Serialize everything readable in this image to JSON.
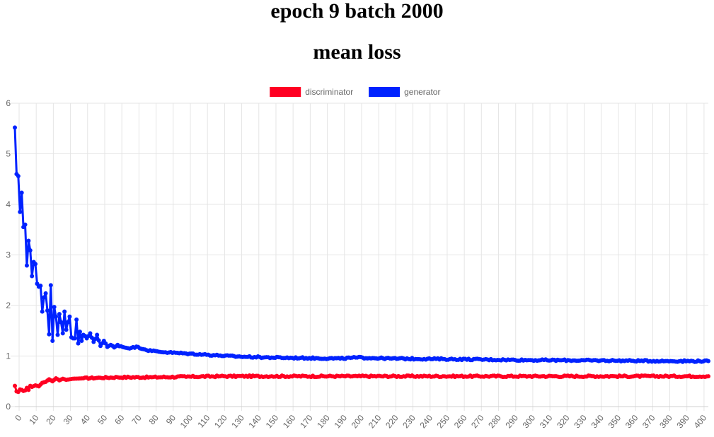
{
  "page": {
    "title_line1": "epoch 9 batch 2000",
    "title_line2": "mean loss"
  },
  "chart_data": {
    "type": "line",
    "title": [
      "epoch 9 batch 2000",
      "mean loss"
    ],
    "xlabel": "",
    "ylabel": "",
    "xlim": [
      0,
      405
    ],
    "ylim": [
      0,
      6
    ],
    "y_ticks": [
      0,
      1,
      2,
      3,
      4,
      5,
      6
    ],
    "x_tick_step": 10,
    "grid": true,
    "legend_position": "top",
    "series": [
      {
        "name": "discriminator",
        "color": "#ff0022",
        "points": [
          [
            0,
            0.41
          ],
          [
            1,
            0.3
          ],
          [
            2,
            0.29
          ],
          [
            3,
            0.34
          ],
          [
            4,
            0.33
          ],
          [
            5,
            0.31
          ],
          [
            6,
            0.32
          ],
          [
            7,
            0.37
          ],
          [
            8,
            0.33
          ],
          [
            9,
            0.41
          ],
          [
            10,
            0.39
          ],
          [
            12,
            0.42
          ],
          [
            14,
            0.4
          ],
          [
            16,
            0.47
          ],
          [
            18,
            0.49
          ],
          [
            20,
            0.54
          ],
          [
            22,
            0.5
          ],
          [
            24,
            0.56
          ],
          [
            26,
            0.52
          ],
          [
            28,
            0.55
          ],
          [
            30,
            0.53
          ],
          [
            34,
            0.55
          ],
          [
            40,
            0.56
          ],
          [
            50,
            0.57
          ],
          [
            60,
            0.58
          ],
          [
            80,
            0.58
          ],
          [
            100,
            0.59
          ],
          [
            120,
            0.6
          ],
          [
            150,
            0.6
          ],
          [
            200,
            0.6
          ],
          [
            250,
            0.6
          ],
          [
            300,
            0.6
          ],
          [
            350,
            0.6
          ],
          [
            405,
            0.6
          ]
        ]
      },
      {
        "name": "generator",
        "color": "#0022ff",
        "points": [
          [
            0,
            5.52
          ],
          [
            1,
            4.6
          ],
          [
            2,
            4.56
          ],
          [
            3,
            3.85
          ],
          [
            4,
            4.23
          ],
          [
            5,
            3.55
          ],
          [
            6,
            3.6
          ],
          [
            7,
            2.79
          ],
          [
            8,
            3.28
          ],
          [
            9,
            3.09
          ],
          [
            10,
            2.58
          ],
          [
            11,
            2.86
          ],
          [
            12,
            2.82
          ],
          [
            13,
            2.43
          ],
          [
            14,
            2.37
          ],
          [
            15,
            2.39
          ],
          [
            16,
            1.88
          ],
          [
            17,
            2.16
          ],
          [
            18,
            2.24
          ],
          [
            19,
            1.9
          ],
          [
            20,
            1.43
          ],
          [
            21,
            2.4
          ],
          [
            22,
            1.3
          ],
          [
            23,
            1.97
          ],
          [
            24,
            1.78
          ],
          [
            25,
            1.42
          ],
          [
            26,
            1.83
          ],
          [
            27,
            1.67
          ],
          [
            28,
            1.45
          ],
          [
            29,
            1.88
          ],
          [
            30,
            1.52
          ],
          [
            31,
            1.67
          ],
          [
            32,
            1.78
          ],
          [
            33,
            1.37
          ],
          [
            34,
            1.35
          ],
          [
            35,
            1.35
          ],
          [
            36,
            1.72
          ],
          [
            37,
            1.25
          ],
          [
            38,
            1.48
          ],
          [
            39,
            1.3
          ],
          [
            40,
            1.42
          ],
          [
            42,
            1.35
          ],
          [
            44,
            1.45
          ],
          [
            46,
            1.28
          ],
          [
            48,
            1.42
          ],
          [
            50,
            1.2
          ],
          [
            52,
            1.3
          ],
          [
            54,
            1.18
          ],
          [
            56,
            1.22
          ],
          [
            58,
            1.17
          ],
          [
            60,
            1.22
          ],
          [
            64,
            1.17
          ],
          [
            68,
            1.16
          ],
          [
            72,
            1.18
          ],
          [
            76,
            1.13
          ],
          [
            80,
            1.1
          ],
          [
            90,
            1.07
          ],
          [
            100,
            1.05
          ],
          [
            110,
            1.03
          ],
          [
            120,
            1.01
          ],
          [
            130,
            0.99
          ],
          [
            140,
            0.98
          ],
          [
            150,
            0.97
          ],
          [
            170,
            0.96
          ],
          [
            190,
            0.95
          ],
          [
            200,
            0.97
          ],
          [
            220,
            0.95
          ],
          [
            250,
            0.94
          ],
          [
            300,
            0.92
          ],
          [
            350,
            0.91
          ],
          [
            380,
            0.9
          ],
          [
            405,
            0.9
          ]
        ]
      }
    ]
  }
}
